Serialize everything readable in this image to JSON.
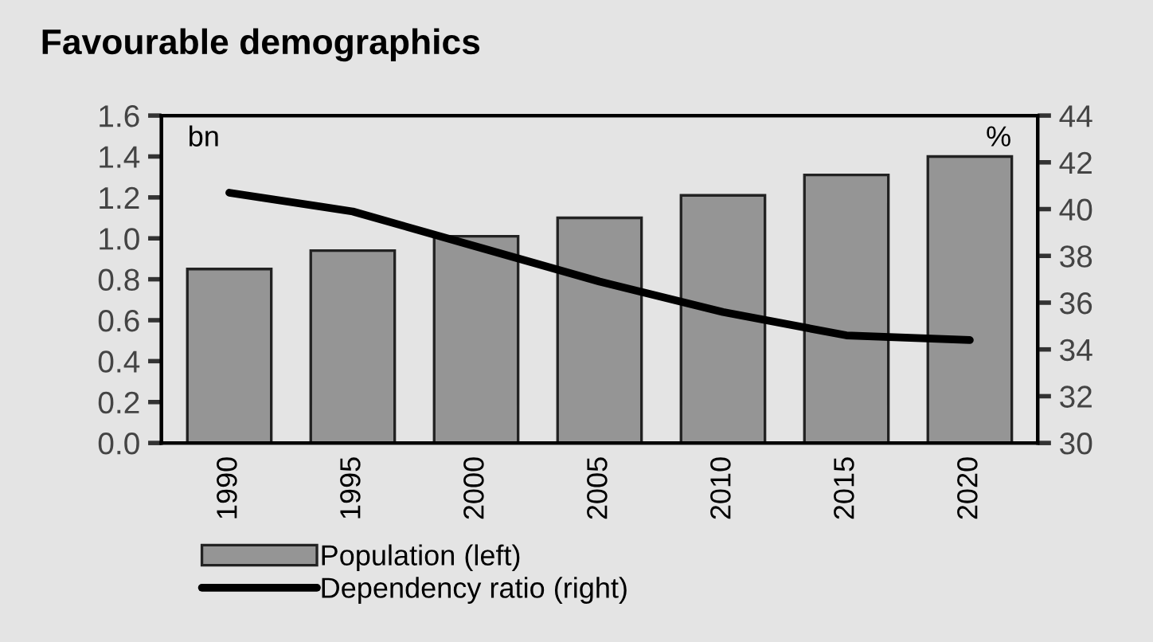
{
  "chart_data": {
    "type": "bar",
    "title": "Favourable demographics",
    "ylabel": "bn",
    "y2label": "%",
    "categories": [
      "1990",
      "1995",
      "2000",
      "2005",
      "2010",
      "2015",
      "2020"
    ],
    "series": [
      {
        "name": "Population (left)",
        "color": "#959595",
        "values": [
          0.85,
          0.94,
          1.01,
          1.1,
          1.21,
          1.31,
          1.4
        ]
      },
      {
        "name": "Dependency ratio (right)",
        "type": "line",
        "axis": "y2",
        "color": "#000000",
        "values": [
          40.7,
          39.9,
          38.4,
          36.9,
          35.6,
          34.6,
          34.4
        ]
      }
    ],
    "ylim": [
      0,
      1.6
    ],
    "yticks": [
      {
        "value": 0,
        "label": "0.0"
      },
      {
        "value": 0.2,
        "label": "0.2"
      },
      {
        "value": 0.4,
        "label": "0.4"
      },
      {
        "value": 0.6,
        "label": "0.6"
      },
      {
        "value": 0.8,
        "label": "0.8"
      },
      {
        "value": 1.0,
        "label": "1.0"
      },
      {
        "value": 1.2,
        "label": "1.2"
      },
      {
        "value": 1.4,
        "label": "1.4"
      },
      {
        "value": 1.6,
        "label": "1.6"
      }
    ],
    "y2lim": [
      30,
      44
    ],
    "y2ticks": [
      30,
      32,
      34,
      36,
      38,
      40,
      42,
      44
    ],
    "grid": false,
    "legend": "bottom"
  }
}
